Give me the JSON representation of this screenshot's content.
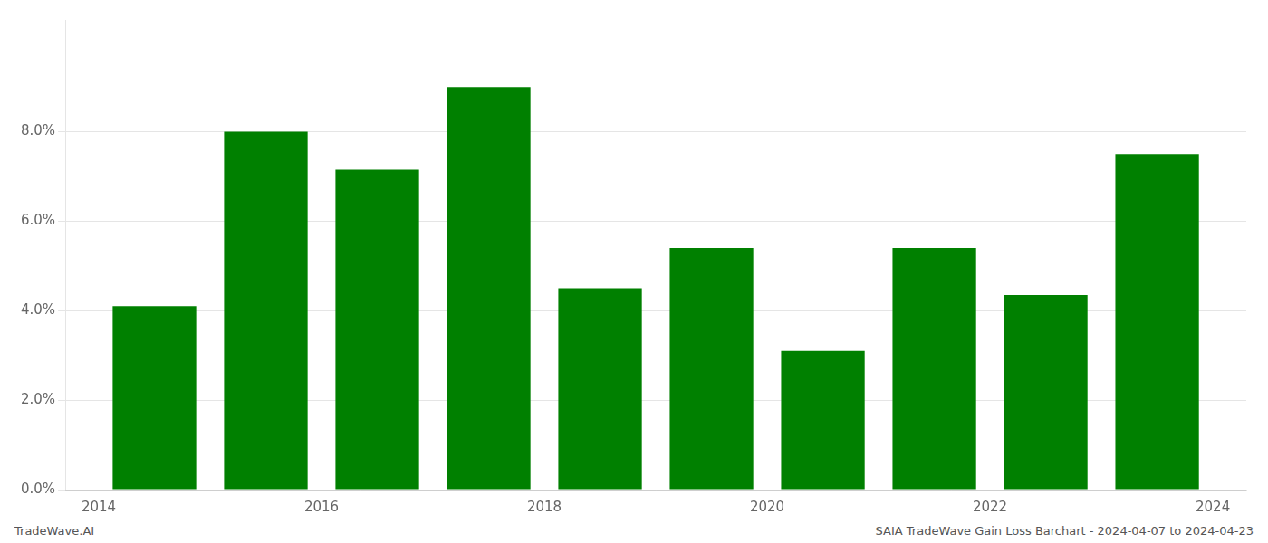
{
  "chart_data": {
    "type": "bar",
    "x": [
      2014,
      2015,
      2016,
      2017,
      2018,
      2019,
      2020,
      2021,
      2022,
      2023
    ],
    "values": [
      0.041,
      0.08,
      0.0715,
      0.09,
      0.045,
      0.054,
      0.031,
      0.054,
      0.0435,
      0.075
    ],
    "color": "#008000",
    "xlim": [
      2013.2,
      2023.8
    ],
    "xticks": [
      {
        "value": 2013.5,
        "label": "2014"
      },
      {
        "value": 2015.5,
        "label": "2016"
      },
      {
        "value": 2017.5,
        "label": "2018"
      },
      {
        "value": 2019.5,
        "label": "2020"
      },
      {
        "value": 2021.5,
        "label": "2022"
      },
      {
        "value": 2023.5,
        "label": "2024"
      }
    ],
    "ylim": [
      0,
      0.105
    ],
    "yticks": [
      {
        "value": 0.0,
        "label": "0.0%"
      },
      {
        "value": 0.02,
        "label": "2.0%"
      },
      {
        "value": 0.04,
        "label": "4.0%"
      },
      {
        "value": 0.06,
        "label": "6.0%"
      },
      {
        "value": 0.08,
        "label": "8.0%"
      }
    ],
    "grid": true,
    "annotations": [
      "TradeWave.AI",
      "SAIA TradeWave Gain Loss Barchart - 2024-04-07 to 2024-04-23"
    ]
  }
}
